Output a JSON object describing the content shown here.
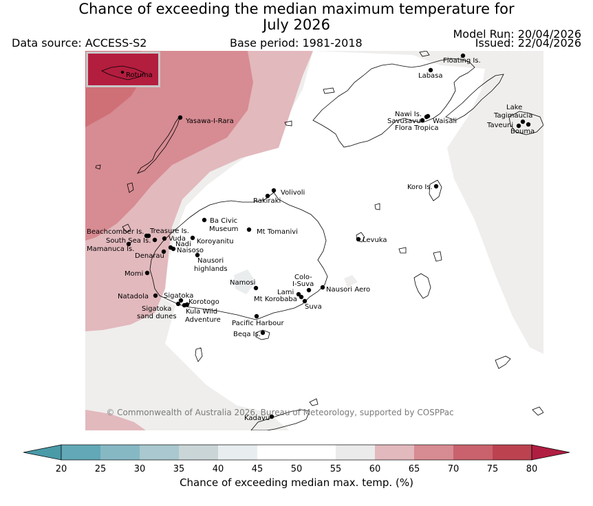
{
  "header": {
    "title_line1": "Chance of exceeding the median maximum temperature for",
    "title_line2": "July 2026",
    "data_source": "Data source: ACCESS-S2",
    "base_period": "Base period: 1981-2018",
    "model_run": "Model Run: 20/04/2026",
    "issued": "Issued: 22/04/2026"
  },
  "map": {
    "copyright": "© Commonwealth of Australia 2026, Bureau of Meteorology, supported by COSPPac",
    "inset_label": "Rotuma",
    "places": [
      {
        "id": "floating-is",
        "label": "Floating Is."
      },
      {
        "id": "labasa",
        "label": "Labasa"
      },
      {
        "id": "yasawa-i-rara",
        "label": "Yasawa-I-Rara"
      },
      {
        "id": "nawi-is",
        "label": "Nawi Is."
      },
      {
        "id": "savusavu",
        "label": "Savusavu"
      },
      {
        "id": "waisali",
        "label": "Waisali"
      },
      {
        "id": "flora-tropica",
        "label": "Flora Tropica"
      },
      {
        "id": "lake-tagimaucia-1",
        "label": "Lake"
      },
      {
        "id": "lake-tagimaucia-2",
        "label": "Tagimaucia"
      },
      {
        "id": "taveuni",
        "label": "Taveuni"
      },
      {
        "id": "bouma",
        "label": "Bouma"
      },
      {
        "id": "koro-is",
        "label": "Koro Is."
      },
      {
        "id": "volivoli",
        "label": "Volivoli"
      },
      {
        "id": "rakiraki",
        "label": "Rakiraki"
      },
      {
        "id": "ba-civic-museum-1",
        "label": "Ba Civic"
      },
      {
        "id": "ba-civic-museum-2",
        "label": "Museum"
      },
      {
        "id": "mt-tomanivi",
        "label": "Mt Tomanivi"
      },
      {
        "id": "levuka",
        "label": "Levuka"
      },
      {
        "id": "beachcomber-is",
        "label": "Beachcomber Is."
      },
      {
        "id": "treasure-is",
        "label": "Treasure Is."
      },
      {
        "id": "south-sea-is",
        "label": "South Sea Is."
      },
      {
        "id": "vuda",
        "label": "Vuda"
      },
      {
        "id": "koroyanitu",
        "label": "Koroyanitu"
      },
      {
        "id": "mamanuca-is",
        "label": "Mamanuca Is."
      },
      {
        "id": "nadi",
        "label": "Nadi"
      },
      {
        "id": "naisoso",
        "label": "Naisoso"
      },
      {
        "id": "denarau",
        "label": "Denarau"
      },
      {
        "id": "nausori-highlands-1",
        "label": "Nausori"
      },
      {
        "id": "nausori-highlands-2",
        "label": "highlands"
      },
      {
        "id": "momi",
        "label": "Momi"
      },
      {
        "id": "namosi",
        "label": "Namosi"
      },
      {
        "id": "colo-i-suva-1",
        "label": "Colo-"
      },
      {
        "id": "colo-i-suva-2",
        "label": "I-Suva"
      },
      {
        "id": "lami",
        "label": "Lami"
      },
      {
        "id": "nausori-aero",
        "label": "Nausori Aero"
      },
      {
        "id": "mt-korobaba",
        "label": "Mt Korobaba"
      },
      {
        "id": "suva",
        "label": "Suva"
      },
      {
        "id": "natadola",
        "label": "Natadola"
      },
      {
        "id": "sigatoka",
        "label": "Sigatoka"
      },
      {
        "id": "korotogo",
        "label": "Korotogo"
      },
      {
        "id": "sigatoka-sand-dunes-1",
        "label": "Sigatoka"
      },
      {
        "id": "sigatoka-sand-dunes-2",
        "label": "sand dunes"
      },
      {
        "id": "kula-wild-adventure-1",
        "label": "Kula Wild"
      },
      {
        "id": "kula-wild-adventure-2",
        "label": "Adventure"
      },
      {
        "id": "pacific-harbour",
        "label": "Pacific Harbour"
      },
      {
        "id": "beqa-is",
        "label": "Beqa Is."
      },
      {
        "id": "kadavu",
        "label": "Kadavu"
      }
    ]
  },
  "colorbar": {
    "label": "Chance of exceeding median max. temp. (%)",
    "ticks": [
      "20",
      "25",
      "30",
      "35",
      "40",
      "45",
      "50",
      "55",
      "60",
      "65",
      "70",
      "75",
      "80"
    ],
    "colors": {
      "below_min": "#4a9aa8",
      "bins": [
        "#62a8b6",
        "#86b8c4",
        "#a9c8cf",
        "#cad5d7",
        "#e8eeef",
        "#ffffff",
        "#ffffff",
        "#ebebeb",
        "#e2b9bd",
        "#d78b92",
        "#c9626c",
        "#bc4250"
      ],
      "above_max": "#b01e42"
    }
  },
  "palette": {
    "map_60_65": "#e2b9bd",
    "map_65_70": "#d78b92",
    "map_70_75": "#cf7077",
    "map_55_60": "#efeeed",
    "map_45_55": "#ffffff",
    "inset_fill": "#b31d3e"
  }
}
